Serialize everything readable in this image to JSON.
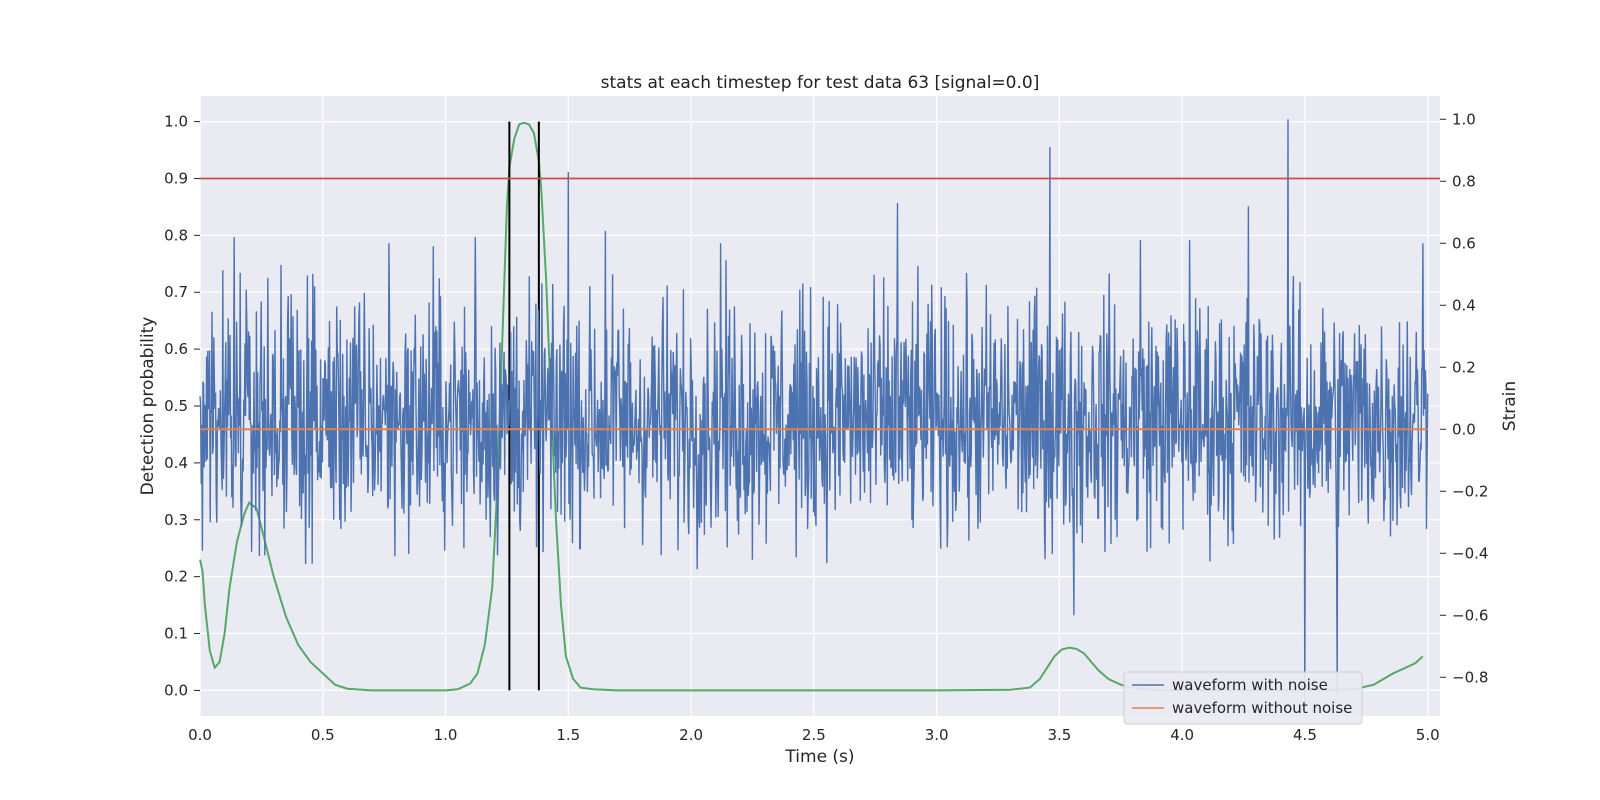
{
  "chart_data": {
    "type": "line",
    "title": "stats at each timestep for test data 63 [signal=0.0]",
    "xlabel": "Time (s)",
    "ylabel_left": "Detection probability",
    "ylabel_right": "Strain",
    "xlim": [
      0.0,
      5.05
    ],
    "ylim_left": [
      -0.045,
      1.045
    ],
    "ylim_right": [
      -0.925,
      1.075
    ],
    "x_ticks": [
      "0.0",
      "0.5",
      "1.0",
      "1.5",
      "2.0",
      "2.5",
      "3.0",
      "3.5",
      "4.0",
      "4.5",
      "5.0"
    ],
    "y_left_ticks": [
      "0.0",
      "0.1",
      "0.2",
      "0.3",
      "0.4",
      "0.5",
      "0.6",
      "0.7",
      "0.8",
      "0.9",
      "1.0"
    ],
    "y_right_ticks": [
      "−0.8",
      "−0.6",
      "−0.4",
      "−0.2",
      "0.0",
      "0.2",
      "0.4",
      "0.6",
      "0.8",
      "1.0"
    ],
    "grid": true,
    "legend_position": "lower-right",
    "threshold": {
      "axis": "left",
      "y": 0.9,
      "color": "#c44e52"
    },
    "event_markers": {
      "x": [
        1.26,
        1.38
      ],
      "y_range": [
        0.0,
        1.0
      ],
      "color": "#000000"
    },
    "series": [
      {
        "name": "waveform with noise",
        "axis": "right",
        "color": "#4c72b0",
        "noise": {
          "t_start": 0.0,
          "t_end": 5.0,
          "samples": 2048,
          "y_min": -0.8,
          "y_max": 0.55,
          "peak_y_max": 1.0
        },
        "spikes": [
          [
            0.14,
            0.62
          ],
          [
            0.33,
            0.53
          ],
          [
            0.77,
            0.6
          ],
          [
            0.95,
            0.59
          ],
          [
            1.12,
            0.62
          ],
          [
            1.5,
            0.83
          ],
          [
            1.65,
            0.64
          ],
          [
            2.12,
            0.6
          ],
          [
            2.84,
            0.73
          ],
          [
            3.46,
            0.91
          ],
          [
            3.56,
            -0.6
          ],
          [
            3.83,
            0.61
          ],
          [
            4.03,
            0.61
          ],
          [
            4.27,
            0.72
          ],
          [
            4.43,
            1.0
          ],
          [
            4.5,
            -0.88
          ],
          [
            4.63,
            -0.85
          ],
          [
            4.98,
            0.6
          ]
        ]
      },
      {
        "name": "waveform without noise",
        "axis": "right",
        "color": "#dd8452",
        "x": [
          0.0,
          5.0
        ],
        "y": [
          0.0,
          0.0
        ]
      },
      {
        "name": "",
        "axis": "left",
        "color": "#55a868",
        "x": [
          0.0,
          0.01,
          0.02,
          0.04,
          0.06,
          0.08,
          0.1,
          0.12,
          0.15,
          0.18,
          0.2,
          0.23,
          0.26,
          0.3,
          0.35,
          0.4,
          0.45,
          0.5,
          0.55,
          0.6,
          0.7,
          0.8,
          0.9,
          1.0,
          1.05,
          1.1,
          1.13,
          1.16,
          1.19,
          1.21,
          1.23,
          1.25,
          1.26,
          1.28,
          1.3,
          1.32,
          1.34,
          1.36,
          1.38,
          1.39,
          1.41,
          1.43,
          1.45,
          1.47,
          1.49,
          1.52,
          1.55,
          1.6,
          1.7,
          1.9,
          2.0,
          2.5,
          3.0,
          3.3,
          3.38,
          3.42,
          3.45,
          3.48,
          3.51,
          3.54,
          3.57,
          3.6,
          3.63,
          3.66,
          3.7,
          3.75,
          3.8,
          3.85,
          3.9,
          4.0,
          4.1,
          4.3,
          4.5,
          4.7,
          4.78,
          4.82,
          4.86,
          4.9,
          4.95,
          4.98
        ],
        "y": [
          0.23,
          0.21,
          0.15,
          0.07,
          0.04,
          0.05,
          0.1,
          0.18,
          0.26,
          0.31,
          0.33,
          0.32,
          0.27,
          0.2,
          0.13,
          0.08,
          0.05,
          0.03,
          0.01,
          0.003,
          0.0,
          0.0,
          0.0,
          0.0,
          0.002,
          0.012,
          0.03,
          0.08,
          0.18,
          0.35,
          0.6,
          0.85,
          0.92,
          0.97,
          0.995,
          0.998,
          0.995,
          0.98,
          0.93,
          0.88,
          0.72,
          0.5,
          0.3,
          0.15,
          0.06,
          0.02,
          0.005,
          0.002,
          0.0,
          0.0,
          0.0,
          0.0,
          0.0,
          0.001,
          0.005,
          0.02,
          0.04,
          0.06,
          0.072,
          0.075,
          0.073,
          0.065,
          0.05,
          0.035,
          0.02,
          0.01,
          0.005,
          0.002,
          0.0,
          0.0,
          0.0,
          0.0,
          0.0,
          0.002,
          0.01,
          0.02,
          0.03,
          0.038,
          0.048,
          0.06
        ]
      }
    ]
  }
}
